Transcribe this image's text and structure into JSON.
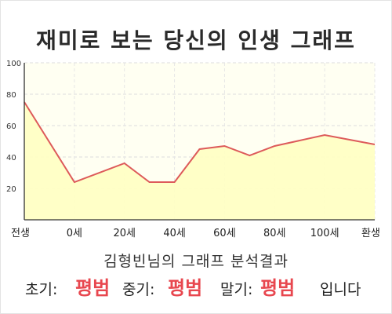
{
  "title": "재미로 보는 당신의 인생 그래프",
  "subtitle": "김형빈님의 그래프 분석결과",
  "verdict": {
    "early_label": "초기:",
    "early_value": "평범",
    "mid_label": "중기:",
    "mid_value": "평범",
    "late_label": "말기:",
    "late_value": "평범",
    "suffix": "입니다"
  },
  "chart_data": {
    "type": "area",
    "title": "재미로 보는 당신의 인생 그래프",
    "xlabel": "",
    "ylabel": "",
    "ylim": [
      0,
      100
    ],
    "yticks": [
      20,
      40,
      60,
      80,
      100
    ],
    "x_ticks": [
      "전생",
      "0세",
      "20세",
      "40세",
      "60세",
      "80세",
      "100세",
      "환생"
    ],
    "x_tick_positions": [
      -20,
      0,
      20,
      40,
      60,
      80,
      100,
      120
    ],
    "xlim": [
      -20,
      120
    ],
    "points": [
      {
        "x": -20,
        "y": 75
      },
      {
        "x": 0,
        "y": 24
      },
      {
        "x": 20,
        "y": 36
      },
      {
        "x": 30,
        "y": 24
      },
      {
        "x": 40,
        "y": 24
      },
      {
        "x": 50,
        "y": 45
      },
      {
        "x": 60,
        "y": 47
      },
      {
        "x": 70,
        "y": 41
      },
      {
        "x": 80,
        "y": 47
      },
      {
        "x": 100,
        "y": 54
      },
      {
        "x": 120,
        "y": 48
      }
    ],
    "grid": true,
    "line_color": "#dd5a5a",
    "fill_color": "#ffffc2",
    "plot_bg_color": "#fffff2"
  }
}
